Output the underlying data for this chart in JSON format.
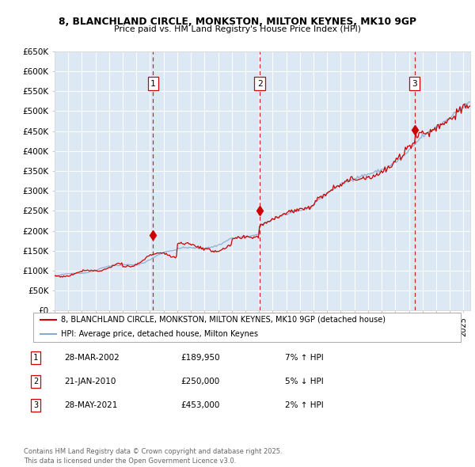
{
  "title_line1": "8, BLANCHLAND CIRCLE, MONKSTON, MILTON KEYNES, MK10 9GP",
  "title_line2": "Price paid vs. HM Land Registry's House Price Index (HPI)",
  "ylabel_ticks": [
    "£0",
    "£50K",
    "£100K",
    "£150K",
    "£200K",
    "£250K",
    "£300K",
    "£350K",
    "£400K",
    "£450K",
    "£500K",
    "£550K",
    "£600K",
    "£650K"
  ],
  "ytick_values": [
    0,
    50000,
    100000,
    150000,
    200000,
    250000,
    300000,
    350000,
    400000,
    450000,
    500000,
    550000,
    600000,
    650000
  ],
  "xmin": 1995.0,
  "xmax": 2025.5,
  "ymin": 0,
  "ymax": 650000,
  "bg_color": "#dce9f5",
  "grid_color": "#ffffff",
  "red_line_color": "#cc0000",
  "blue_line_color": "#88aacc",
  "dashed_line_color": "#cc0000",
  "transaction1_date": 2002.23,
  "transaction1_price": 189950,
  "transaction2_date": 2010.05,
  "transaction2_price": 250000,
  "transaction3_date": 2021.41,
  "transaction3_price": 453000,
  "legend_label_red": "8, BLANCHLAND CIRCLE, MONKSTON, MILTON KEYNES, MK10 9GP (detached house)",
  "legend_label_blue": "HPI: Average price, detached house, Milton Keynes",
  "table_entries": [
    {
      "num": "1",
      "date": "28-MAR-2002",
      "price": "£189,950",
      "pct": "7% ↑ HPI"
    },
    {
      "num": "2",
      "date": "21-JAN-2010",
      "price": "£250,000",
      "pct": "5% ↓ HPI"
    },
    {
      "num": "3",
      "date": "28-MAY-2021",
      "price": "£453,000",
      "pct": "2% ↑ HPI"
    }
  ],
  "footnote": "Contains HM Land Registry data © Crown copyright and database right 2025.\nThis data is licensed under the Open Government Licence v3.0."
}
